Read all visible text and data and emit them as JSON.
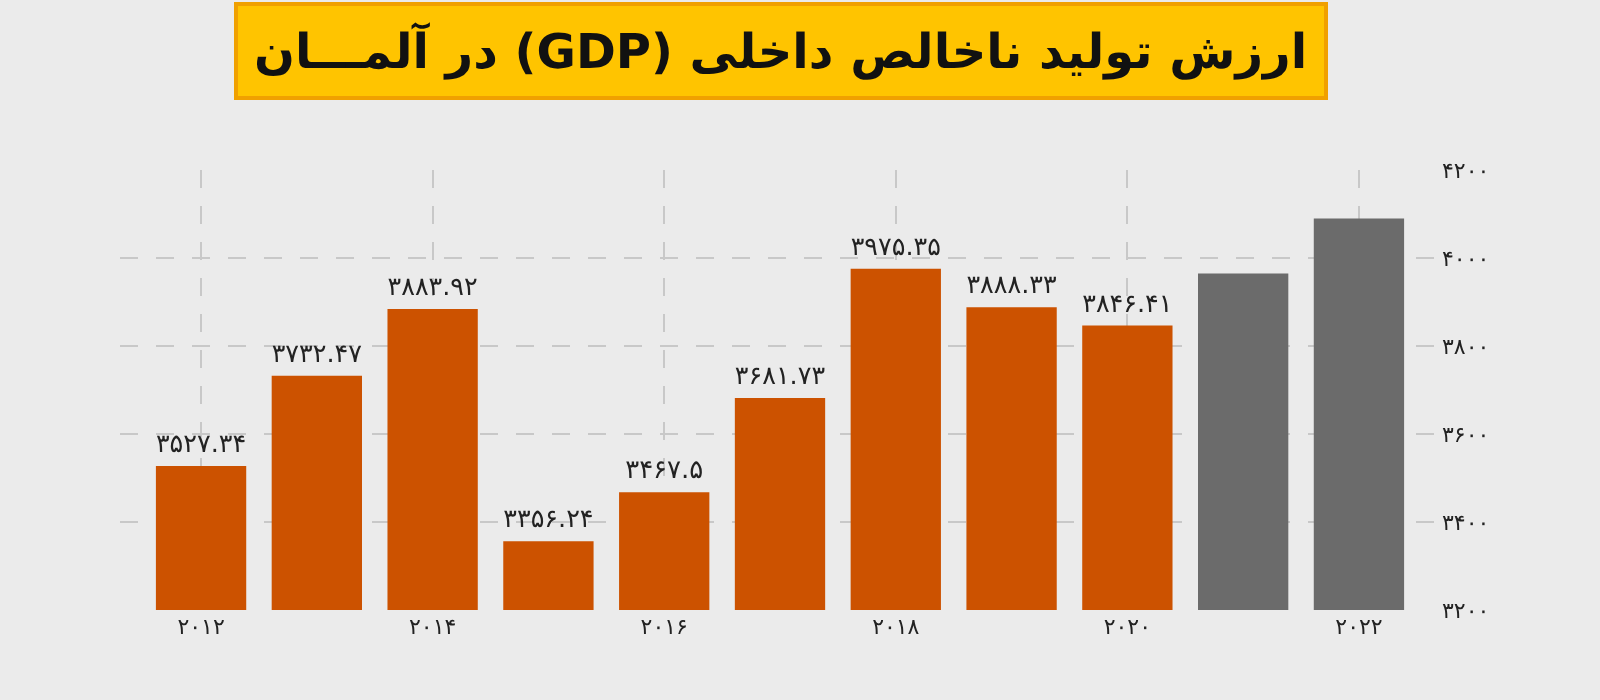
{
  "chart_data": {
    "type": "bar",
    "title": "ارزش تولید ناخالص داخلی (GDP) در آلمـــان",
    "categories": [
      "۲۰۱۲",
      null,
      "۲۰۱۴",
      null,
      "۲۰۱۶",
      null,
      "۲۰۱۸",
      null,
      "۲۰۲۰",
      null,
      "۲۰۲۲"
    ],
    "values": [
      3527.34,
      3732.47,
      3883.92,
      3356.24,
      3467.5,
      3681.73,
      3975.35,
      3888.33,
      3846.41,
      3965,
      4090
    ],
    "colors": [
      "#cc5200",
      "#cc5200",
      "#cc5200",
      "#cc5200",
      "#cc5200",
      "#cc5200",
      "#cc5200",
      "#cc5200",
      "#cc5200",
      "#6b6b6b",
      "#6b6b6b"
    ],
    "value_labels": [
      "۳۵۲۷.۳۴",
      "۳۷۳۲.۴۷",
      "۳۸۸۳.۹۲",
      "۳۳۵۶.۲۴",
      "۳۴۶۷.۵",
      "۳۶۸۱.۷۳",
      "۳۹۷۵.۳۵",
      "۳۸۸۸.۳۳",
      "۳۸۴۶.۴۱",
      null,
      null
    ],
    "ylim": [
      3200,
      4200
    ],
    "yticks": [
      {
        "value": 3200,
        "label": "۳۲۰۰"
      },
      {
        "value": 3400,
        "label": "۳۴۰۰"
      },
      {
        "value": 3600,
        "label": "۳۶۰۰"
      },
      {
        "value": 3800,
        "label": "۳۸۰۰"
      },
      {
        "value": 4000,
        "label": "۴۰۰۰"
      },
      {
        "value": 4200,
        "label": "۴۲۰۰"
      }
    ],
    "grid": true
  }
}
